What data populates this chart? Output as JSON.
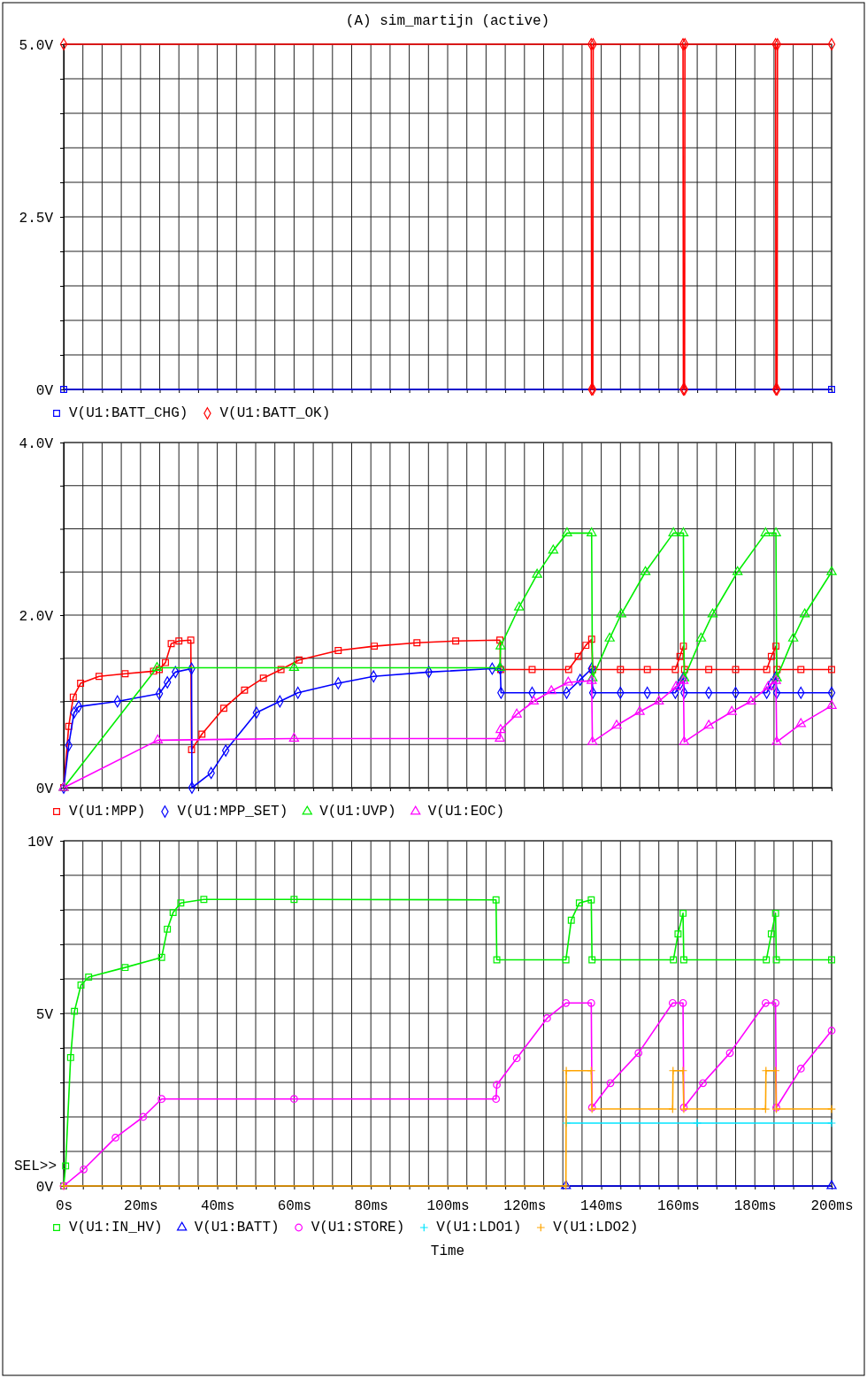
{
  "chart_data": [
    {
      "type": "line",
      "title": "(A) sim_martijn (active)",
      "xlim": [
        0,
        200
      ],
      "ylim": [
        0,
        5
      ],
      "grid": true,
      "legend": "bottom left",
      "tick_labels": "y",
      "xticks": [
        {
          "value": 0,
          "label": null
        },
        {
          "value": 5,
          "label": null
        },
        {
          "value": 10,
          "label": null
        },
        {
          "value": 15,
          "label": null
        },
        {
          "value": 20,
          "label": null
        },
        {
          "value": 25,
          "label": null
        },
        {
          "value": 30,
          "label": null
        },
        {
          "value": 35,
          "label": null
        },
        {
          "value": 40,
          "label": null
        },
        {
          "value": 45,
          "label": null
        },
        {
          "value": 50,
          "label": null
        },
        {
          "value": 55,
          "label": null
        },
        {
          "value": 60,
          "label": null
        },
        {
          "value": 65,
          "label": null
        },
        {
          "value": 70,
          "label": null
        },
        {
          "value": 75,
          "label": null
        },
        {
          "value": 80,
          "label": null
        },
        {
          "value": 85,
          "label": null
        },
        {
          "value": 90,
          "label": null
        },
        {
          "value": 95,
          "label": null
        },
        {
          "value": 100,
          "label": null
        },
        {
          "value": 105,
          "label": null
        },
        {
          "value": 110,
          "label": null
        },
        {
          "value": 115,
          "label": null
        },
        {
          "value": 120,
          "label": null
        },
        {
          "value": 125,
          "label": null
        },
        {
          "value": 130,
          "label": null
        },
        {
          "value": 135,
          "label": null
        },
        {
          "value": 140,
          "label": null
        },
        {
          "value": 145,
          "label": null
        },
        {
          "value": 150,
          "label": null
        },
        {
          "value": 155,
          "label": null
        },
        {
          "value": 160,
          "label": null
        },
        {
          "value": 165,
          "label": null
        },
        {
          "value": 170,
          "label": null
        },
        {
          "value": 175,
          "label": null
        },
        {
          "value": 180,
          "label": null
        },
        {
          "value": 185,
          "label": null
        },
        {
          "value": 190,
          "label": null
        },
        {
          "value": 195,
          "label": null
        },
        {
          "value": 200,
          "label": null
        }
      ],
      "yticks": [
        {
          "value": 0,
          "label": "0V"
        },
        {
          "value": 0.5,
          "label": null
        },
        {
          "value": 1,
          "label": null
        },
        {
          "value": 1.5,
          "label": null
        },
        {
          "value": 2,
          "label": null
        },
        {
          "value": 2.5,
          "label": "2.5V"
        },
        {
          "value": 3,
          "label": null
        },
        {
          "value": 3.5,
          "label": null
        },
        {
          "value": 4,
          "label": null
        },
        {
          "value": 4.5,
          "label": null
        },
        {
          "value": 5,
          "label": "5.0V"
        }
      ],
      "series": [
        {
          "name": "V(U1:BATT_CHG)",
          "color": "#0000ff",
          "marker": "square",
          "x": [
            0,
            200
          ],
          "values": [
            0,
            0
          ]
        },
        {
          "name": "V(U1:BATT_OK)",
          "color": "#ff0000",
          "marker": "diamond",
          "x": [
            0,
            137.4,
            137.5,
            137.8,
            137.9,
            161.3,
            161.4,
            161.7,
            161.8,
            185.4,
            185.5,
            185.8,
            185.9,
            200
          ],
          "values": [
            5,
            5,
            0,
            0,
            5,
            5,
            0,
            0,
            5,
            5,
            0,
            0,
            5,
            5
          ]
        }
      ]
    },
    {
      "type": "line",
      "xlim": [
        0,
        200
      ],
      "ylim": [
        0,
        4
      ],
      "grid": true,
      "legend": "bottom left",
      "tick_labels": "y",
      "xticks": [
        {
          "value": 0,
          "label": null
        },
        {
          "value": 5,
          "label": null
        },
        {
          "value": 10,
          "label": null
        },
        {
          "value": 15,
          "label": null
        },
        {
          "value": 20,
          "label": null
        },
        {
          "value": 25,
          "label": null
        },
        {
          "value": 30,
          "label": null
        },
        {
          "value": 35,
          "label": null
        },
        {
          "value": 40,
          "label": null
        },
        {
          "value": 45,
          "label": null
        },
        {
          "value": 50,
          "label": null
        },
        {
          "value": 55,
          "label": null
        },
        {
          "value": 60,
          "label": null
        },
        {
          "value": 65,
          "label": null
        },
        {
          "value": 70,
          "label": null
        },
        {
          "value": 75,
          "label": null
        },
        {
          "value": 80,
          "label": null
        },
        {
          "value": 85,
          "label": null
        },
        {
          "value": 90,
          "label": null
        },
        {
          "value": 95,
          "label": null
        },
        {
          "value": 100,
          "label": null
        },
        {
          "value": 105,
          "label": null
        },
        {
          "value": 110,
          "label": null
        },
        {
          "value": 115,
          "label": null
        },
        {
          "value": 120,
          "label": null
        },
        {
          "value": 125,
          "label": null
        },
        {
          "value": 130,
          "label": null
        },
        {
          "value": 135,
          "label": null
        },
        {
          "value": 140,
          "label": null
        },
        {
          "value": 145,
          "label": null
        },
        {
          "value": 150,
          "label": null
        },
        {
          "value": 155,
          "label": null
        },
        {
          "value": 160,
          "label": null
        },
        {
          "value": 165,
          "label": null
        },
        {
          "value": 170,
          "label": null
        },
        {
          "value": 175,
          "label": null
        },
        {
          "value": 180,
          "label": null
        },
        {
          "value": 185,
          "label": null
        },
        {
          "value": 190,
          "label": null
        },
        {
          "value": 195,
          "label": null
        },
        {
          "value": 200,
          "label": null
        }
      ],
      "yticks": [
        {
          "value": 0,
          "label": "0V"
        },
        {
          "value": 0.5,
          "label": null
        },
        {
          "value": 1,
          "label": null
        },
        {
          "value": 1.5,
          "label": null
        },
        {
          "value": 2,
          "label": "2.0V"
        },
        {
          "value": 2.5,
          "label": null
        },
        {
          "value": 3,
          "label": null
        },
        {
          "value": 3.5,
          "label": null
        },
        {
          "value": 4,
          "label": "4.0V"
        }
      ],
      "series": [
        {
          "name": "V(U1:MPP)",
          "color": "#ff0000",
          "marker": "square",
          "x": [
            0,
            1.3,
            2.5,
            4.4,
            9.2,
            16,
            23.4,
            24.9,
            26.5,
            28,
            30,
            33.1,
            33.3,
            36,
            41.7,
            47.1,
            52,
            56.6,
            61.3,
            71.5,
            80.9,
            92,
            102.1,
            113.6,
            113.8,
            122,
            131.5,
            134,
            136,
            137.5,
            137.8,
            145,
            152,
            159.3,
            160.5,
            161.4,
            161.7,
            168,
            175,
            183.1,
            184.3,
            185.5,
            185.8,
            192,
            200
          ],
          "values": [
            0,
            0.71,
            1.05,
            1.21,
            1.29,
            1.32,
            1.35,
            1.37,
            1.45,
            1.67,
            1.7,
            1.71,
            0.44,
            0.62,
            0.92,
            1.13,
            1.27,
            1.37,
            1.48,
            1.59,
            1.64,
            1.68,
            1.7,
            1.71,
            1.37,
            1.37,
            1.37,
            1.52,
            1.65,
            1.72,
            1.37,
            1.37,
            1.37,
            1.37,
            1.52,
            1.64,
            1.37,
            1.37,
            1.37,
            1.37,
            1.52,
            1.64,
            1.37,
            1.37,
            1.37
          ]
        },
        {
          "name": "V(U1:MPP_SET)",
          "color": "#0000ff",
          "marker": "diamond",
          "x": [
            0,
            1.3,
            2.7,
            3.9,
            14,
            24.9,
            27,
            29.1,
            33.3,
            33.4,
            38.4,
            42.2,
            50.2,
            56.3,
            61,
            71.5,
            80.7,
            95.1,
            111.6,
            113.7,
            113.9,
            122,
            131,
            134.5,
            137.5,
            137.8,
            145,
            152,
            159.3,
            160.5,
            161.4,
            161.6,
            168,
            175,
            183.1,
            184.3,
            185.5,
            185.7,
            192,
            200
          ],
          "values": [
            0,
            0.49,
            0.87,
            0.94,
            1.0,
            1.09,
            1.22,
            1.34,
            1.38,
            0,
            0.17,
            0.43,
            0.87,
            1.0,
            1.1,
            1.21,
            1.29,
            1.34,
            1.38,
            1.38,
            1.1,
            1.1,
            1.1,
            1.25,
            1.38,
            1.1,
            1.1,
            1.1,
            1.1,
            1.2,
            1.27,
            1.1,
            1.1,
            1.1,
            1.1,
            1.2,
            1.28,
            1.1,
            1.1,
            1.1
          ]
        },
        {
          "name": "V(U1:UVP)",
          "color": "#00ee00",
          "marker": "triangle",
          "x": [
            0,
            24.3,
            60,
            113.6,
            113.8,
            118.6,
            123.3,
            127.5,
            131.1,
            137.5,
            137.7,
            142.2,
            145.2,
            151.5,
            158.8,
            161.4,
            161.6,
            166,
            169,
            175.5,
            182.8,
            185.5,
            185.7,
            190,
            193,
            200
          ],
          "values": [
            0,
            1.39,
            1.39,
            1.39,
            1.64,
            2.09,
            2.47,
            2.75,
            2.95,
            2.95,
            1.27,
            1.73,
            2.01,
            2.5,
            2.95,
            2.95,
            1.27,
            1.73,
            2.01,
            2.5,
            2.95,
            2.95,
            1.27,
            1.73,
            2.01,
            2.5
          ]
        },
        {
          "name": "V(U1:EOC)",
          "color": "#ff00ff",
          "marker": "triangle",
          "x": [
            0,
            24.5,
            60,
            113.6,
            113.8,
            118,
            122.4,
            127,
            131.4,
            137.5,
            137.7,
            144,
            150,
            155,
            159.5,
            161.4,
            161.6,
            168,
            174,
            179,
            183.5,
            185.5,
            185.7,
            192,
            200
          ],
          "values": [
            0,
            0.55,
            0.57,
            0.57,
            0.67,
            0.85,
            1.0,
            1.12,
            1.22,
            1.24,
            0.53,
            0.72,
            0.88,
            1.0,
            1.17,
            1.24,
            0.53,
            0.72,
            0.88,
            1.0,
            1.17,
            1.24,
            0.53,
            0.74,
            0.95
          ]
        }
      ]
    },
    {
      "type": "line",
      "xlabel": "Time",
      "annotations": [
        "SEL>>"
      ],
      "xlim": [
        0,
        200
      ],
      "ylim": [
        0,
        10
      ],
      "grid": true,
      "legend": "bottom left",
      "xticks": [
        {
          "value": 0,
          "label": "0s"
        },
        {
          "value": 5,
          "label": null
        },
        {
          "value": 10,
          "label": null
        },
        {
          "value": 15,
          "label": null
        },
        {
          "value": 20,
          "label": "20ms"
        },
        {
          "value": 25,
          "label": null
        },
        {
          "value": 30,
          "label": null
        },
        {
          "value": 35,
          "label": null
        },
        {
          "value": 40,
          "label": "40ms"
        },
        {
          "value": 45,
          "label": null
        },
        {
          "value": 50,
          "label": null
        },
        {
          "value": 55,
          "label": null
        },
        {
          "value": 60,
          "label": "60ms"
        },
        {
          "value": 65,
          "label": null
        },
        {
          "value": 70,
          "label": null
        },
        {
          "value": 75,
          "label": null
        },
        {
          "value": 80,
          "label": "80ms"
        },
        {
          "value": 85,
          "label": null
        },
        {
          "value": 90,
          "label": null
        },
        {
          "value": 95,
          "label": null
        },
        {
          "value": 100,
          "label": "100ms"
        },
        {
          "value": 105,
          "label": null
        },
        {
          "value": 110,
          "label": null
        },
        {
          "value": 115,
          "label": null
        },
        {
          "value": 120,
          "label": "120ms"
        },
        {
          "value": 125,
          "label": null
        },
        {
          "value": 130,
          "label": null
        },
        {
          "value": 135,
          "label": null
        },
        {
          "value": 140,
          "label": "140ms"
        },
        {
          "value": 145,
          "label": null
        },
        {
          "value": 150,
          "label": null
        },
        {
          "value": 155,
          "label": null
        },
        {
          "value": 160,
          "label": "160ms"
        },
        {
          "value": 165,
          "label": null
        },
        {
          "value": 170,
          "label": null
        },
        {
          "value": 175,
          "label": null
        },
        {
          "value": 180,
          "label": "180ms"
        },
        {
          "value": 185,
          "label": null
        },
        {
          "value": 190,
          "label": null
        },
        {
          "value": 195,
          "label": null
        },
        {
          "value": 200,
          "label": "200ms"
        }
      ],
      "yticks": [
        {
          "value": 0,
          "label": "0V"
        },
        {
          "value": 1,
          "label": null
        },
        {
          "value": 2,
          "label": null
        },
        {
          "value": 3,
          "label": null
        },
        {
          "value": 4,
          "label": null
        },
        {
          "value": 5,
          "label": "5V"
        },
        {
          "value": 6,
          "label": null
        },
        {
          "value": 7,
          "label": null
        },
        {
          "value": 8,
          "label": null
        },
        {
          "value": 9,
          "label": null
        },
        {
          "value": 10,
          "label": "10V"
        }
      ],
      "series": [
        {
          "name": "V(U1:IN_HV)",
          "color": "#00ee00",
          "marker": "square",
          "x": [
            0,
            0.5,
            1.8,
            2.8,
            4.5,
            6.5,
            16,
            25.5,
            27,
            28.5,
            30.5,
            36.5,
            60,
            112.6,
            112.8,
            130.8,
            132.2,
            134.3,
            137.4,
            137.6,
            158.8,
            160,
            161.3,
            161.5,
            183,
            184.3,
            185.4,
            185.6,
            200
          ],
          "values": [
            0,
            0.58,
            3.72,
            5.06,
            5.82,
            6.05,
            6.33,
            6.62,
            7.44,
            7.92,
            8.2,
            8.3,
            8.3,
            8.29,
            6.55,
            6.55,
            7.7,
            8.2,
            8.29,
            6.55,
            6.55,
            7.3,
            7.9,
            6.55,
            6.55,
            7.3,
            7.9,
            6.55,
            6.55
          ]
        },
        {
          "name": "V(U1:BATT)",
          "color": "#0000ff",
          "marker": "triangle",
          "x": [
            130.8,
            200
          ],
          "values": [
            0,
            0
          ]
        },
        {
          "name": "V(U1:STORE)",
          "color": "#ff00ff",
          "marker": "circle",
          "x": [
            0,
            5.2,
            13.5,
            20.7,
            25.5,
            60,
            112.6,
            112.8,
            118,
            125.9,
            130.8,
            137.4,
            137.6,
            142.4,
            149.7,
            158.6,
            161.3,
            161.5,
            166.5,
            173.5,
            182.8,
            185.4,
            185.6,
            192,
            200
          ],
          "values": [
            0,
            0.48,
            1.4,
            2.0,
            2.52,
            2.52,
            2.52,
            2.93,
            3.7,
            4.86,
            5.3,
            5.3,
            2.27,
            2.98,
            3.85,
            5.3,
            5.3,
            2.27,
            2.98,
            3.85,
            5.3,
            5.3,
            2.27,
            3.4,
            4.5
          ]
        },
        {
          "name": "V(U1:LDO1)",
          "color": "#00e5ff",
          "marker": "cross",
          "x": [
            130.9,
            165,
            200
          ],
          "values": [
            1.82,
            1.82,
            1.82
          ]
        },
        {
          "name": "V(U1:LDO2)",
          "color": "#ffa500",
          "marker": "cross",
          "x": [
            0,
            130.8,
            130.9,
            137.4,
            137.6,
            158.6,
            158.7,
            161.3,
            161.5,
            182.8,
            182.9,
            185.4,
            185.6,
            200
          ],
          "values": [
            0,
            0,
            3.34,
            3.34,
            2.23,
            2.23,
            3.34,
            3.34,
            2.23,
            2.23,
            3.34,
            3.34,
            2.23,
            2.23
          ]
        }
      ]
    }
  ]
}
